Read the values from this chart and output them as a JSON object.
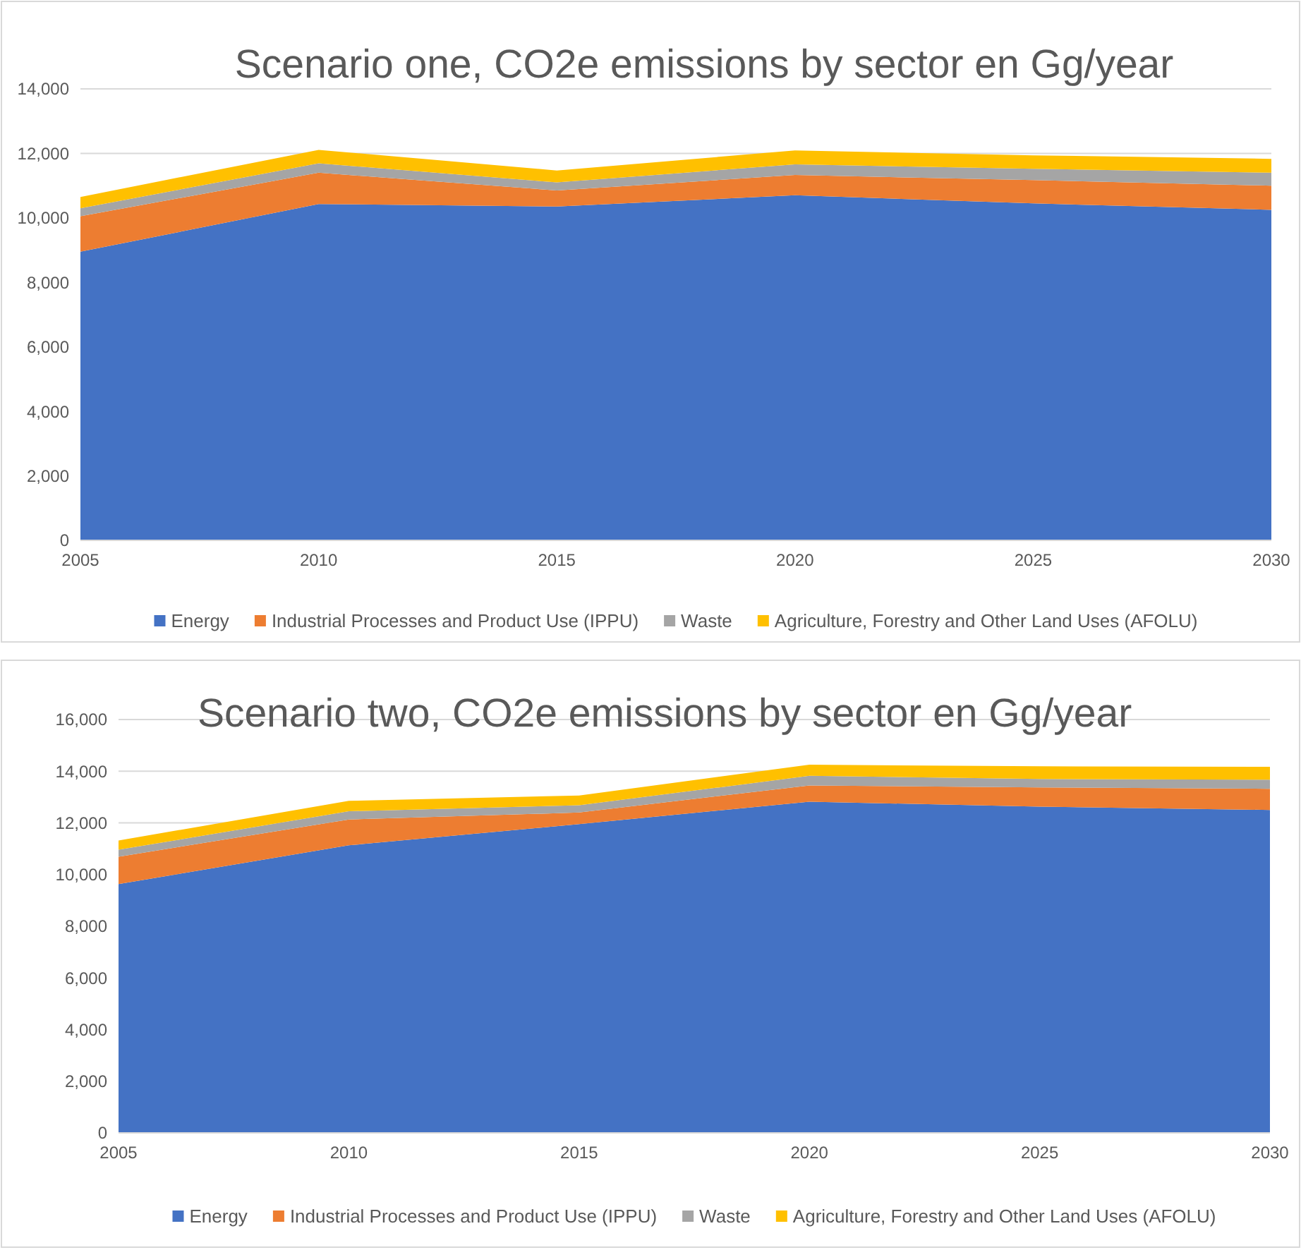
{
  "chart_data": [
    {
      "type": "area",
      "title": "Scenario one, CO2e emissions by sector en Gg/year",
      "stacked": true,
      "x": [
        2005,
        2010,
        2015,
        2020,
        2025,
        2030
      ],
      "xlim": [
        2005,
        2030
      ],
      "xticks": [
        2005,
        2010,
        2015,
        2020,
        2025,
        2030
      ],
      "ylim": [
        0,
        14000
      ],
      "yticks": [
        0,
        {
          "value": 2000,
          "label": "2,000"
        },
        {
          "value": 4000,
          "label": "4,000"
        },
        {
          "value": 6000,
          "label": "6,000"
        },
        {
          "value": 8000,
          "label": "8,000"
        },
        {
          "value": 10000,
          "label": "10,000"
        },
        {
          "value": 12000,
          "label": "12,000"
        },
        {
          "value": 14000,
          "label": "14,000"
        }
      ],
      "grid": "y",
      "legend": "bottom",
      "series": [
        {
          "name": "Energy",
          "color": "#4472c4",
          "values": [
            8950,
            10430,
            10350,
            10700,
            10450,
            10250
          ]
        },
        {
          "name": "Industrial Processes and Product Use (IPPU)",
          "color": "#ed7d31",
          "values": [
            1100,
            970,
            500,
            630,
            720,
            750
          ]
        },
        {
          "name": "Waste",
          "color": "#a5a5a5",
          "values": [
            250,
            290,
            250,
            330,
            350,
            400
          ]
        },
        {
          "name": "Agriculture, Forestry and Other Land Uses (AFOLU)",
          "color": "#ffc000",
          "values": [
            350,
            420,
            370,
            430,
            420,
            430
          ]
        }
      ]
    },
    {
      "type": "area",
      "title": "Scenario two, CO2e emissions by sector en Gg/year",
      "stacked": true,
      "x": [
        2005,
        2010,
        2015,
        2020,
        2025,
        2030
      ],
      "xlim": [
        2005,
        2030
      ],
      "xticks": [
        2005,
        2010,
        2015,
        2020,
        2025,
        2030
      ],
      "ylim": [
        0,
        16000
      ],
      "yticks": [
        0,
        {
          "value": 2000,
          "label": "2,000"
        },
        {
          "value": 4000,
          "label": "4,000"
        },
        {
          "value": 6000,
          "label": "6,000"
        },
        {
          "value": 8000,
          "label": "8,000"
        },
        {
          "value": 10000,
          "label": "10,000"
        },
        {
          "value": 12000,
          "label": "12,000"
        },
        {
          "value": 14000,
          "label": "14,000"
        },
        {
          "value": 16000,
          "label": "16,000"
        }
      ],
      "grid": "y",
      "legend": "bottom",
      "series": [
        {
          "name": "Energy",
          "color": "#4472c4",
          "values": [
            9630,
            11130,
            11950,
            12820,
            12630,
            12500
          ]
        },
        {
          "name": "Industrial Processes and Product Use (IPPU)",
          "color": "#ed7d31",
          "values": [
            1060,
            1000,
            450,
            630,
            740,
            820
          ]
        },
        {
          "name": "Waste",
          "color": "#a5a5a5",
          "values": [
            270,
            320,
            280,
            370,
            330,
            350
          ]
        },
        {
          "name": "Agriculture, Forestry and Other Land Uses (AFOLU)",
          "color": "#ffc000",
          "values": [
            360,
            400,
            380,
            430,
            490,
            500
          ]
        }
      ]
    }
  ]
}
